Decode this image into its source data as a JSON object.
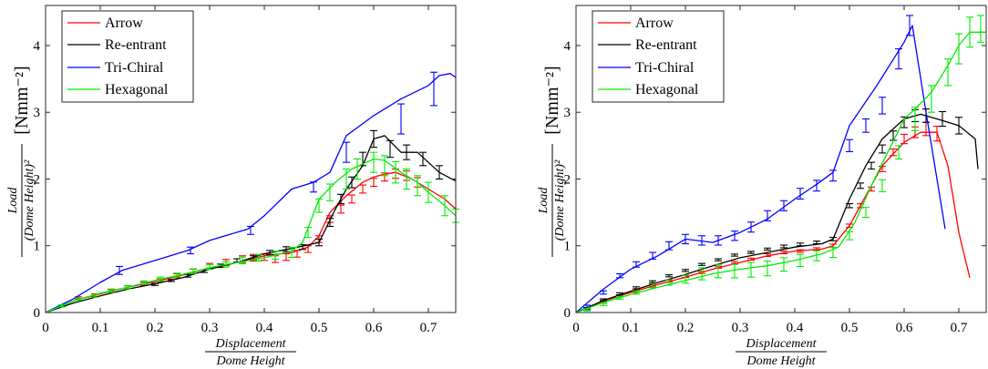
{
  "chart_data": [
    {
      "type": "line",
      "title": "",
      "xlabel_num": "Displacement",
      "xlabel_den": "Dome Height",
      "ylabel_num": "Load",
      "ylabel_den": "(Dome Height)²",
      "ylabel_unit": "[Nmm⁻²]",
      "xlim": [
        0,
        0.75
      ],
      "ylim": [
        0,
        4.6
      ],
      "xticks": [
        0,
        0.1,
        0.2,
        0.3,
        0.4,
        0.5,
        0.6,
        0.7
      ],
      "xtick_labels": [
        "0",
        "0.1",
        "0.2",
        "0.3",
        "0.4",
        "0.5",
        "0.6",
        "0.7"
      ],
      "yticks": [
        0,
        1,
        2,
        3,
        4
      ],
      "ytick_labels": [
        "0",
        "1",
        "2",
        "3",
        "4"
      ],
      "legend_position": "top-left",
      "series": [
        {
          "name": "Arrow",
          "color": "#ff0000",
          "x": [
            0,
            0.05,
            0.1,
            0.15,
            0.2,
            0.25,
            0.3,
            0.35,
            0.4,
            0.45,
            0.48,
            0.5,
            0.52,
            0.55,
            0.58,
            0.6,
            0.62,
            0.64,
            0.67,
            0.7,
            0.73,
            0.75
          ],
          "y": [
            0,
            0.17,
            0.28,
            0.38,
            0.46,
            0.56,
            0.67,
            0.75,
            0.85,
            0.9,
            0.98,
            1.15,
            1.5,
            1.75,
            1.95,
            2.03,
            2.07,
            2.1,
            2.0,
            1.85,
            1.7,
            1.55
          ],
          "error_x": [
            0.03,
            0.06,
            0.09,
            0.12,
            0.15,
            0.18,
            0.21,
            0.24,
            0.27,
            0.3,
            0.33,
            0.36,
            0.38,
            0.4,
            0.42,
            0.44,
            0.46,
            0.48,
            0.5,
            0.52,
            0.54,
            0.56,
            0.58,
            0.6,
            0.62,
            0.64,
            0.66,
            0.68
          ],
          "error_y": [
            0.1,
            0.22,
            0.26,
            0.33,
            0.38,
            0.43,
            0.48,
            0.55,
            0.62,
            0.7,
            0.75,
            0.8,
            0.82,
            0.83,
            0.8,
            0.83,
            0.88,
            0.95,
            1.1,
            1.4,
            1.55,
            1.7,
            1.85,
            1.95,
            2.03,
            2.08,
            2.05,
            1.95
          ],
          "error_h": [
            0.03,
            0.03,
            0.04,
            0.04,
            0.04,
            0.05,
            0.05,
            0.06,
            0.06,
            0.07,
            0.09,
            0.1,
            0.1,
            0.1,
            0.1,
            0.1,
            0.1,
            0.1,
            0.1,
            0.1,
            0.12,
            0.12,
            0.12,
            0.12,
            0.12,
            0.14,
            0.14,
            0.14
          ]
        },
        {
          "name": "Re-entrant",
          "color": "#000000",
          "x": [
            0,
            0.05,
            0.1,
            0.15,
            0.2,
            0.25,
            0.3,
            0.35,
            0.4,
            0.45,
            0.5,
            0.53,
            0.55,
            0.58,
            0.6,
            0.62,
            0.65,
            0.68,
            0.7,
            0.72,
            0.75
          ],
          "y": [
            0,
            0.14,
            0.25,
            0.35,
            0.43,
            0.52,
            0.65,
            0.75,
            0.88,
            0.96,
            1.05,
            1.55,
            1.85,
            2.2,
            2.6,
            2.65,
            2.4,
            2.4,
            2.25,
            2.1,
            1.97
          ],
          "error_x": [
            0.2,
            0.23,
            0.26,
            0.29,
            0.32,
            0.35,
            0.38,
            0.41,
            0.44,
            0.47,
            0.5,
            0.52,
            0.54,
            0.56,
            0.58,
            0.6,
            0.63,
            0.66,
            0.69,
            0.72
          ],
          "error_y": [
            0.42,
            0.48,
            0.55,
            0.62,
            0.7,
            0.78,
            0.82,
            0.9,
            0.95,
            0.98,
            1.05,
            1.35,
            1.7,
            1.95,
            2.3,
            2.6,
            2.45,
            2.4,
            2.3,
            2.1
          ],
          "error_h": [
            0.03,
            0.03,
            0.04,
            0.04,
            0.05,
            0.05,
            0.06,
            0.06,
            0.07,
            0.07,
            0.1,
            0.12,
            0.14,
            0.16,
            0.2,
            0.25,
            0.25,
            0.22,
            0.2,
            0.2
          ]
        },
        {
          "name": "Tri-Chiral",
          "color": "#0000ff",
          "x": [
            0,
            0.05,
            0.1,
            0.14,
            0.2,
            0.26,
            0.3,
            0.37,
            0.4,
            0.45,
            0.49,
            0.52,
            0.55,
            0.6,
            0.65,
            0.7,
            0.72,
            0.74,
            0.75
          ],
          "y": [
            0,
            0.2,
            0.45,
            0.63,
            0.78,
            0.93,
            1.08,
            1.25,
            1.45,
            1.85,
            1.95,
            2.1,
            2.65,
            2.95,
            3.2,
            3.4,
            3.55,
            3.58,
            3.52
          ],
          "error_x": [
            0.135,
            0.265,
            0.375,
            0.49,
            0.55,
            0.65,
            0.71
          ],
          "error_y": [
            0.63,
            0.93,
            1.23,
            1.88,
            2.4,
            2.9,
            3.35
          ],
          "error_h": [
            0.12,
            0.1,
            0.12,
            0.15,
            0.3,
            0.45,
            0.5
          ]
        },
        {
          "name": "Hexagonal",
          "color": "#00ee00",
          "x": [
            0,
            0.05,
            0.1,
            0.15,
            0.2,
            0.25,
            0.3,
            0.35,
            0.4,
            0.45,
            0.47,
            0.5,
            0.53,
            0.56,
            0.6,
            0.62,
            0.65,
            0.68,
            0.7,
            0.73,
            0.75
          ],
          "y": [
            0,
            0.17,
            0.29,
            0.38,
            0.48,
            0.57,
            0.67,
            0.75,
            0.82,
            0.92,
            1.05,
            1.7,
            1.95,
            2.15,
            2.3,
            2.28,
            2.1,
            1.95,
            1.8,
            1.6,
            1.45
          ],
          "error_x": [
            0.03,
            0.06,
            0.09,
            0.12,
            0.15,
            0.18,
            0.21,
            0.24,
            0.27,
            0.3,
            0.33,
            0.36,
            0.39,
            0.42,
            0.45,
            0.48,
            0.5,
            0.52,
            0.55,
            0.57,
            0.6,
            0.62,
            0.64,
            0.66,
            0.68,
            0.7,
            0.73,
            0.75
          ],
          "error_y": [
            0.1,
            0.2,
            0.25,
            0.32,
            0.38,
            0.45,
            0.5,
            0.56,
            0.62,
            0.68,
            0.72,
            0.78,
            0.82,
            0.86,
            0.9,
            1.2,
            1.6,
            1.8,
            2.0,
            2.15,
            2.25,
            2.2,
            2.1,
            2.0,
            1.9,
            1.8,
            1.6,
            1.45
          ],
          "error_h": [
            0.03,
            0.03,
            0.04,
            0.04,
            0.05,
            0.05,
            0.06,
            0.06,
            0.07,
            0.07,
            0.08,
            0.1,
            0.1,
            0.12,
            0.15,
            0.15,
            0.2,
            0.25,
            0.3,
            0.3,
            0.3,
            0.3,
            0.32,
            0.3,
            0.3,
            0.3,
            0.3,
            0.2
          ]
        }
      ]
    },
    {
      "type": "line",
      "title": "",
      "xlabel_num": "Displacement",
      "xlabel_den": "Dome Height",
      "ylabel_num": "Load",
      "ylabel_den": "(Dome Height)²",
      "ylabel_unit": "[Nmm⁻²]",
      "xlim": [
        0,
        0.75
      ],
      "ylim": [
        0,
        4.6
      ],
      "xticks": [
        0,
        0.1,
        0.2,
        0.3,
        0.4,
        0.5,
        0.6,
        0.7
      ],
      "xtick_labels": [
        "0",
        "0.1",
        "0.2",
        "0.3",
        "0.4",
        "0.5",
        "0.6",
        "0.7"
      ],
      "yticks": [
        0,
        1,
        2,
        3,
        4
      ],
      "ytick_labels": [
        "0",
        "1",
        "2",
        "3",
        "4"
      ],
      "legend_position": "top-left",
      "series": [
        {
          "name": "Arrow",
          "color": "#ff0000",
          "x": [
            0,
            0.05,
            0.1,
            0.15,
            0.2,
            0.25,
            0.3,
            0.35,
            0.4,
            0.45,
            0.47,
            0.5,
            0.53,
            0.56,
            0.6,
            0.63,
            0.66,
            0.68,
            0.7,
            0.72
          ],
          "y": [
            0,
            0.17,
            0.3,
            0.42,
            0.53,
            0.65,
            0.75,
            0.85,
            0.92,
            0.95,
            1.0,
            1.3,
            1.75,
            2.2,
            2.55,
            2.7,
            2.7,
            2.2,
            1.2,
            0.52
          ],
          "error_x": [
            0.02,
            0.05,
            0.08,
            0.11,
            0.14,
            0.17,
            0.2,
            0.23,
            0.26,
            0.29,
            0.32,
            0.35,
            0.38,
            0.41,
            0.44,
            0.47,
            0.5,
            0.52,
            0.54,
            0.56,
            0.58,
            0.6,
            0.62,
            0.64,
            0.66
          ],
          "error_y": [
            0.06,
            0.17,
            0.25,
            0.32,
            0.4,
            0.47,
            0.54,
            0.6,
            0.68,
            0.75,
            0.8,
            0.86,
            0.9,
            0.92,
            0.95,
            1.0,
            1.3,
            1.6,
            1.85,
            2.15,
            2.4,
            2.6,
            2.7,
            2.75,
            2.68
          ],
          "error_h": [
            0.03,
            0.03,
            0.03,
            0.03,
            0.03,
            0.03,
            0.03,
            0.03,
            0.03,
            0.03,
            0.03,
            0.04,
            0.04,
            0.04,
            0.04,
            0.05,
            0.05,
            0.06,
            0.06,
            0.08,
            0.1,
            0.14,
            0.16,
            0.2,
            0.22
          ]
        },
        {
          "name": "Re-entrant",
          "color": "#000000",
          "x": [
            0,
            0.05,
            0.1,
            0.15,
            0.2,
            0.25,
            0.3,
            0.35,
            0.4,
            0.45,
            0.47,
            0.5,
            0.53,
            0.56,
            0.6,
            0.63,
            0.66,
            0.7,
            0.73,
            0.735
          ],
          "y": [
            0,
            0.18,
            0.32,
            0.45,
            0.57,
            0.7,
            0.82,
            0.9,
            0.98,
            1.03,
            1.1,
            1.7,
            2.2,
            2.6,
            2.9,
            2.97,
            2.9,
            2.8,
            2.6,
            2.15
          ],
          "error_x": [
            0.02,
            0.05,
            0.08,
            0.11,
            0.14,
            0.17,
            0.2,
            0.23,
            0.26,
            0.29,
            0.32,
            0.35,
            0.38,
            0.41,
            0.44,
            0.47,
            0.5,
            0.52,
            0.54,
            0.56,
            0.58,
            0.6,
            0.62,
            0.64,
            0.67,
            0.7
          ],
          "error_y": [
            0.06,
            0.19,
            0.28,
            0.37,
            0.46,
            0.55,
            0.63,
            0.72,
            0.79,
            0.86,
            0.9,
            0.95,
            0.99,
            1.02,
            1.05,
            1.1,
            1.6,
            1.9,
            2.2,
            2.45,
            2.65,
            2.85,
            2.95,
            2.95,
            2.9,
            2.8
          ],
          "error_h": [
            0.03,
            0.03,
            0.03,
            0.03,
            0.03,
            0.03,
            0.03,
            0.03,
            0.03,
            0.03,
            0.03,
            0.03,
            0.04,
            0.04,
            0.04,
            0.05,
            0.06,
            0.08,
            0.1,
            0.12,
            0.14,
            0.16,
            0.18,
            0.2,
            0.22,
            0.25
          ]
        },
        {
          "name": "Tri-Chiral",
          "color": "#0000ff",
          "x": [
            0,
            0.05,
            0.1,
            0.15,
            0.2,
            0.25,
            0.3,
            0.35,
            0.4,
            0.44,
            0.47,
            0.5,
            0.55,
            0.6,
            0.615,
            0.64,
            0.675
          ],
          "y": [
            0,
            0.35,
            0.65,
            0.85,
            1.1,
            1.05,
            1.2,
            1.4,
            1.7,
            1.92,
            2.1,
            2.8,
            3.4,
            4.05,
            4.3,
            3.0,
            1.25
          ],
          "error_x": [
            0.02,
            0.05,
            0.08,
            0.11,
            0.14,
            0.17,
            0.2,
            0.23,
            0.26,
            0.29,
            0.32,
            0.35,
            0.38,
            0.41,
            0.44,
            0.47,
            0.5,
            0.53,
            0.56,
            0.59,
            0.61
          ],
          "error_y": [
            0.09,
            0.3,
            0.55,
            0.72,
            0.85,
            1.0,
            1.1,
            1.08,
            1.08,
            1.15,
            1.28,
            1.45,
            1.6,
            1.78,
            1.9,
            2.05,
            2.5,
            2.8,
            3.1,
            3.8,
            4.3
          ],
          "error_h": [
            0.04,
            0.05,
            0.06,
            0.08,
            0.1,
            0.12,
            0.14,
            0.14,
            0.14,
            0.14,
            0.15,
            0.15,
            0.15,
            0.16,
            0.16,
            0.16,
            0.18,
            0.2,
            0.25,
            0.3,
            0.3
          ]
        },
        {
          "name": "Hexagonal",
          "color": "#00ee00",
          "x": [
            0,
            0.05,
            0.1,
            0.15,
            0.2,
            0.25,
            0.3,
            0.35,
            0.4,
            0.45,
            0.48,
            0.51,
            0.54,
            0.57,
            0.6,
            0.62,
            0.65,
            0.68,
            0.7,
            0.72,
            0.75
          ],
          "y": [
            0,
            0.15,
            0.27,
            0.38,
            0.48,
            0.58,
            0.65,
            0.7,
            0.78,
            0.88,
            0.98,
            1.35,
            1.9,
            2.4,
            2.9,
            3.05,
            3.3,
            3.7,
            4.0,
            4.2,
            4.2
          ],
          "error_x": [
            0.02,
            0.05,
            0.08,
            0.11,
            0.14,
            0.17,
            0.2,
            0.23,
            0.26,
            0.29,
            0.32,
            0.35,
            0.38,
            0.41,
            0.44,
            0.47,
            0.5,
            0.53,
            0.56,
            0.59,
            0.62,
            0.65,
            0.68,
            0.7,
            0.72,
            0.74
          ],
          "error_y": [
            0.04,
            0.12,
            0.22,
            0.3,
            0.4,
            0.45,
            0.5,
            0.58,
            0.62,
            0.62,
            0.64,
            0.66,
            0.72,
            0.78,
            0.85,
            0.9,
            1.15,
            1.5,
            1.9,
            2.4,
            2.9,
            3.2,
            3.6,
            3.95,
            4.2,
            4.25
          ],
          "error_h": [
            0.03,
            0.03,
            0.04,
            0.05,
            0.06,
            0.08,
            0.12,
            0.18,
            0.2,
            0.2,
            0.22,
            0.22,
            0.2,
            0.18,
            0.15,
            0.15,
            0.12,
            0.15,
            0.18,
            0.2,
            0.35,
            0.4,
            0.4,
            0.45,
            0.45,
            0.4
          ]
        }
      ]
    }
  ]
}
